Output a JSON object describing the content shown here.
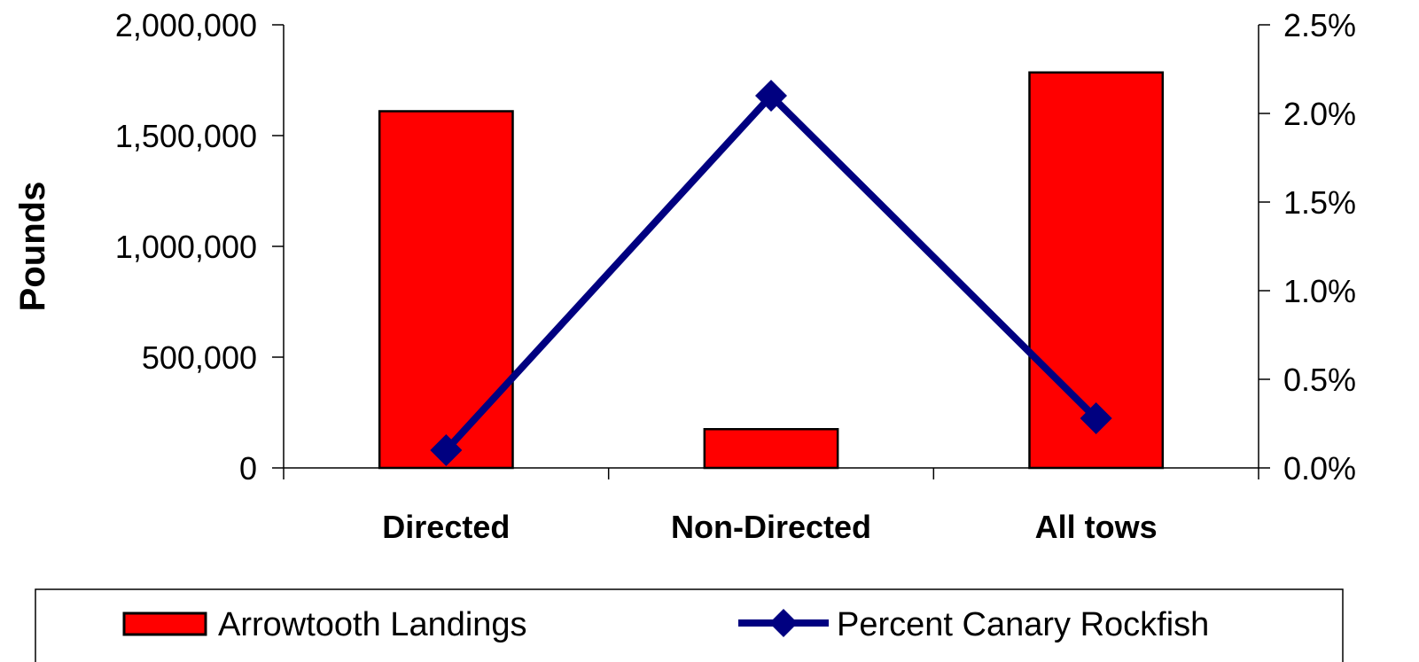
{
  "chart_data": {
    "type": "bar",
    "title": "",
    "categories": [
      "Directed",
      "Non-Directed",
      "All tows"
    ],
    "series": [
      {
        "name": "Arrowtooth Landings",
        "type": "bar",
        "axis": "left",
        "values": [
          1610000,
          175000,
          1785000
        ],
        "color": "#ff0000"
      },
      {
        "name": "Percent Canary Rockfish",
        "type": "line",
        "axis": "right",
        "values": [
          0.1,
          2.1,
          0.28
        ],
        "color": "#000080"
      }
    ],
    "ylabel": "Pounds",
    "ylim": [
      0,
      2000000
    ],
    "y_ticks": [
      "0",
      "500,000",
      "1,000,000",
      "1,500,000",
      "2,000,000"
    ],
    "y2lim": [
      0,
      2.5
    ],
    "y2_ticks": [
      "0.0%",
      "0.5%",
      "1.0%",
      "1.5%",
      "2.0%",
      "2.5%"
    ],
    "grid": false,
    "legend_position": "bottom"
  }
}
